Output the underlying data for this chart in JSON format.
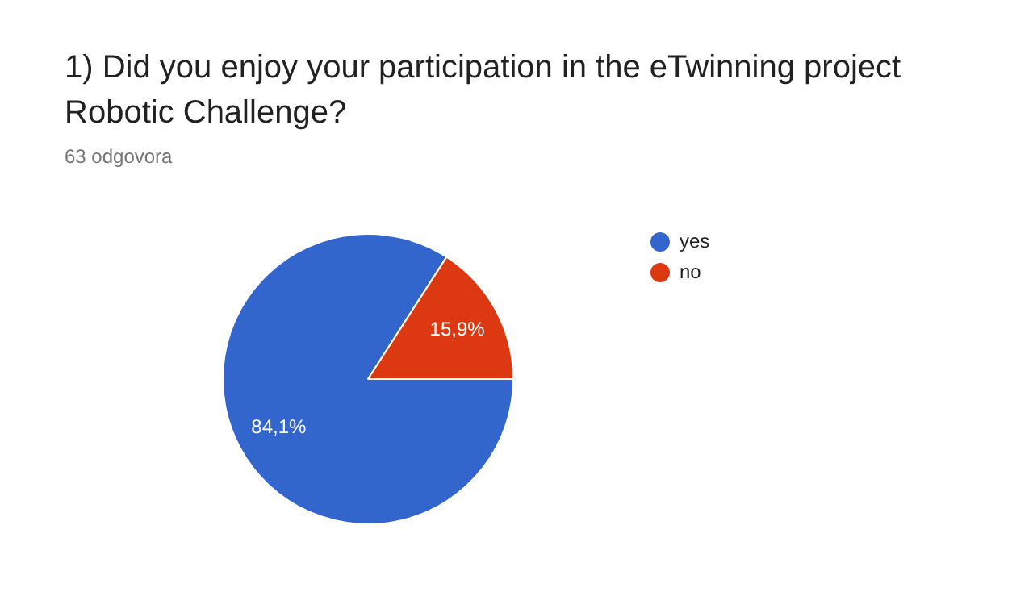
{
  "chart_data": {
    "type": "pie",
    "title": "1) Did you enjoy your participation in the eTwinning project Robotic Challenge?",
    "subtitle": "63 odgovora",
    "categories": [
      "yes",
      "no"
    ],
    "values": [
      84.1,
      15.9
    ],
    "colors": [
      "#3366cc",
      "#dc3912"
    ],
    "value_labels": [
      "84,1%",
      "15,9%"
    ],
    "legend": "right"
  }
}
